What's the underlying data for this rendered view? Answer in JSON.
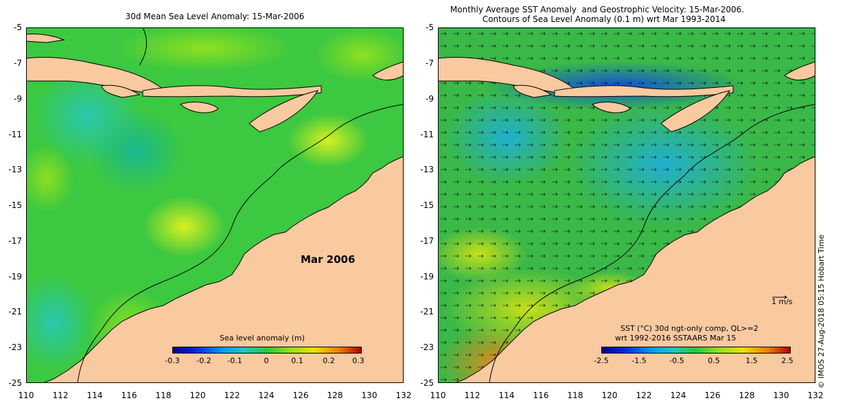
{
  "left_panel": {
    "title": "30d Mean Sea Level Anomaly: 15-Mar-2006",
    "month_label": "Mar 2006",
    "colorbar": {
      "title": "Sea level anomaly (m)",
      "labels": [
        "-0.3",
        "-0.2",
        "-0.1",
        "0",
        "0.1",
        "0.2",
        "0.3"
      ]
    }
  },
  "right_panel": {
    "title_line1": "Monthly Average SST Anomaly  and Geostrophic Velocity: 15-Mar-2006.",
    "title_line2": "Contours of Sea Level Anomaly (0.1 m) wrt Mar 1993-2014",
    "scale_label": "1 m/s",
    "colorbar": {
      "title_line1": "SST (°C) 30d ngt-only comp, QL>=2",
      "title_line2": "wrt 1992-2016 SSTAARS Mar 15",
      "labels": [
        "-2.5",
        "-1.5",
        "-0.5",
        "0.5",
        "1.5",
        "2.5"
      ]
    }
  },
  "axes": {
    "y_ticks": [
      "-5",
      "-7",
      "-9",
      "-11",
      "-13",
      "-15",
      "-17",
      "-19",
      "-21",
      "-23",
      "-25"
    ],
    "x_ticks": [
      "110",
      "112",
      "114",
      "116",
      "118",
      "120",
      "122",
      "124",
      "126",
      "128",
      "130",
      "132"
    ]
  },
  "credit": "© IMOS 27-Aug-2018 05:15 Hobart Time",
  "colors": {
    "land": "#f9c9a0",
    "ocean_green": "#2bc02b",
    "cbar_start": "#00008b",
    "cbar_end": "#b40000"
  }
}
